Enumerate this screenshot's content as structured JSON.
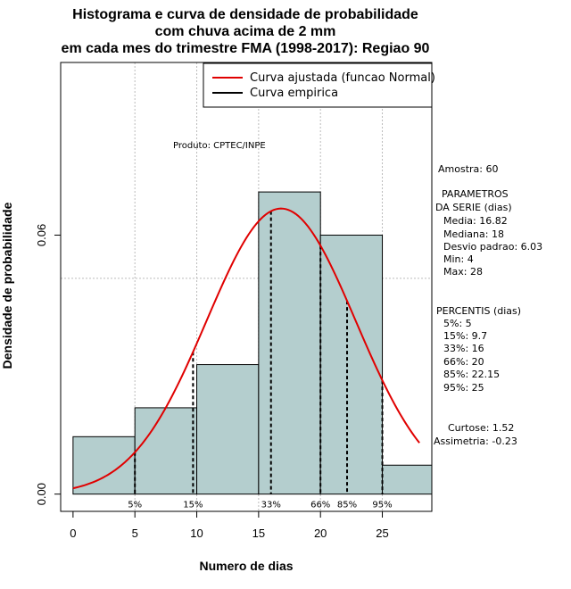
{
  "chart_data": {
    "type": "histogram",
    "title_lines": [
      "Histograma e curva de densidade de probabilidade",
      "com chuva acima de 2 mm",
      "em cada mes do trimestre FMA (1998-2017): Regiao 90"
    ],
    "xlabel": "Numero de dias",
    "ylabel": "Densidade de probabilidade",
    "xlim": [
      -1,
      29
    ],
    "ylim": [
      -0.004,
      0.1
    ],
    "x_ticks": [
      0,
      5,
      10,
      15,
      20,
      25
    ],
    "y_ticks": [
      0.0,
      0.06
    ],
    "y_tick_labels": [
      "0.00",
      "0.06"
    ],
    "grid_x": [
      5,
      10,
      15,
      20,
      25
    ],
    "grid_y": [
      0.05,
      0.1
    ],
    "bins": [
      {
        "from": 0,
        "to": 5,
        "density": 0.0133
      },
      {
        "from": 5,
        "to": 10,
        "density": 0.02
      },
      {
        "from": 10,
        "to": 15,
        "density": 0.03
      },
      {
        "from": 15,
        "to": 20,
        "density": 0.07
      },
      {
        "from": 20,
        "to": 25,
        "density": 0.06
      },
      {
        "from": 25,
        "to": 30,
        "density": 0.0067
      }
    ],
    "bar_color": "#b4cece",
    "normal_fit": {
      "mean": 16.82,
      "sd": 6.03,
      "x_from": 0,
      "x_to": 28,
      "color": "#e00000"
    },
    "percentiles": [
      {
        "label": "5%",
        "x": 5
      },
      {
        "label": "15%",
        "x": 9.7
      },
      {
        "label": "33%",
        "x": 16
      },
      {
        "label": "66%",
        "x": 20
      },
      {
        "label": "85%",
        "x": 22.15
      },
      {
        "label": "95%",
        "x": 25
      }
    ],
    "legend": {
      "position": "top-right",
      "items": [
        {
          "label": "Curva ajustada (funcao Normal)",
          "color": "#e00000"
        },
        {
          "label": "Curva empirica",
          "color": "#000000"
        }
      ]
    },
    "annotation": "Produto: CPTEC/INPE"
  },
  "stats_panel": {
    "amostra": "Amostra: 60",
    "param_title_1": "PARAMETROS",
    "param_title_2": "DA SERIE (dias)",
    "media": "Media: 16.82",
    "mediana": "Mediana: 18",
    "desvio": "Desvio padrao: 6.03",
    "min": "Min: 4",
    "max": "Max: 28",
    "percentis_title": "PERCENTIS (dias)",
    "p5": "5%: 5",
    "p15": "15%: 9.7",
    "p33": "33%: 16",
    "p66": "66%: 20",
    "p85": "85%: 22.15",
    "p95": "95%: 25",
    "curtose": "Curtose: 1.52",
    "assimetria": "Assimetria: -0.23"
  }
}
